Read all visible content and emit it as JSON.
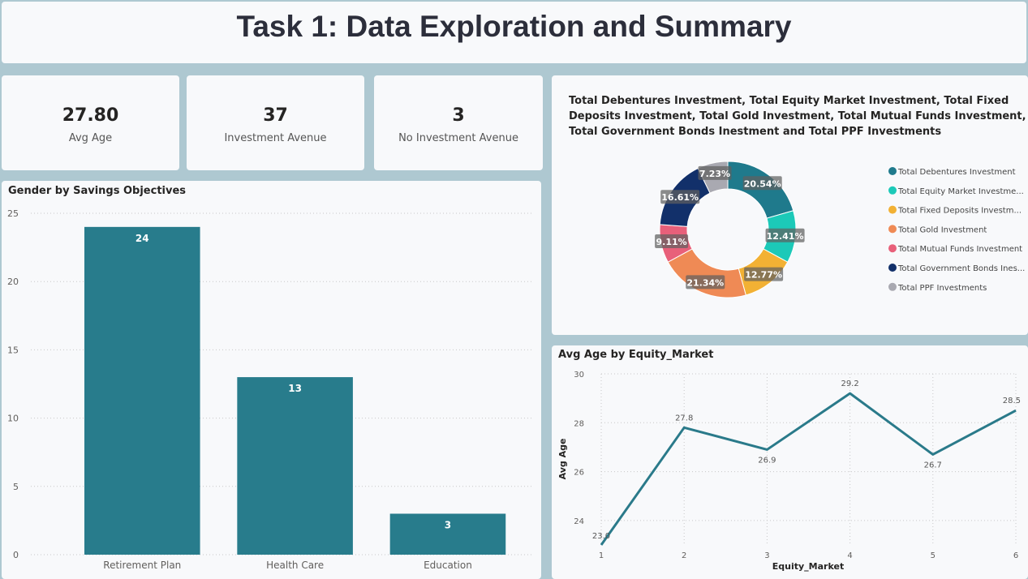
{
  "page": {
    "title": "Task 1: Data Exploration and Summary"
  },
  "kpis": [
    {
      "value": "27.80",
      "label": "Avg Age"
    },
    {
      "value": "37",
      "label": "Investment Avenue"
    },
    {
      "value": "3",
      "label": "No Investment Avenue"
    }
  ],
  "colors": {
    "bar": "#287c8c",
    "line": "#2a7a8a",
    "background": "#aec8d1",
    "card": "#f8f9fb"
  },
  "chart_data": [
    {
      "type": "bar",
      "title": "Gender by Savings Objectives",
      "categories": [
        "Retirement Plan",
        "Health Care",
        "Education"
      ],
      "values": [
        24,
        13,
        3
      ],
      "ylim": [
        0,
        25
      ],
      "yticks": [
        0,
        5,
        10,
        15,
        20,
        25
      ],
      "grid": true
    },
    {
      "type": "pie",
      "title": "Total Debentures Investment, Total Equity Market Investment, Total Fixed Deposits Investment, Total Gold Investment, Total Mutual Funds Investment, Total Government Bonds Inestment and Total PPF Investments",
      "legend_position": "right",
      "slices": [
        {
          "name": "Total Debentures Investment",
          "legend": "Total Debentures Investment",
          "value": 20.54,
          "label": "20.54%",
          "color": "#1f7a8c"
        },
        {
          "name": "Total Equity Market Investment",
          "legend": "Total Equity Market Investme...",
          "value": 12.41,
          "label": "12.41%",
          "color": "#1cc9b8"
        },
        {
          "name": "Total Fixed Deposits Investment",
          "legend": "Total Fixed Deposits Investm...",
          "value": 12.77,
          "label": "12.77%",
          "color": "#f2b134"
        },
        {
          "name": "Total Gold Investment",
          "legend": "Total Gold Investment",
          "value": 21.34,
          "label": "21.34%",
          "color": "#ef8a55"
        },
        {
          "name": "Total Mutual Funds Investment",
          "legend": "Total Mutual Funds Investment",
          "value": 9.11,
          "label": "9.11%",
          "color": "#e8607a"
        },
        {
          "name": "Total Government Bonds Inestment",
          "legend": "Total Government Bonds Ines...",
          "value": 16.61,
          "label": "16.61%",
          "color": "#12306a"
        },
        {
          "name": "Total PPF Investments",
          "legend": "Total PPF Investments",
          "value": 7.23,
          "label": "7.23%",
          "color": "#a9a9b1"
        }
      ]
    },
    {
      "type": "line",
      "title": "Avg Age by Equity_Market",
      "xlabel": "Equity_Market",
      "ylabel": "Avg Age",
      "x": [
        1,
        2,
        3,
        4,
        5,
        6
      ],
      "y": [
        23.0,
        27.8,
        26.9,
        29.2,
        26.7,
        28.5
      ],
      "point_labels": [
        "23.0",
        "27.8",
        "26.9",
        "29.2",
        "26.7",
        "28.5"
      ],
      "yticks": [
        24,
        26,
        28,
        30
      ],
      "ylim": [
        23,
        30
      ],
      "grid": true
    }
  ]
}
